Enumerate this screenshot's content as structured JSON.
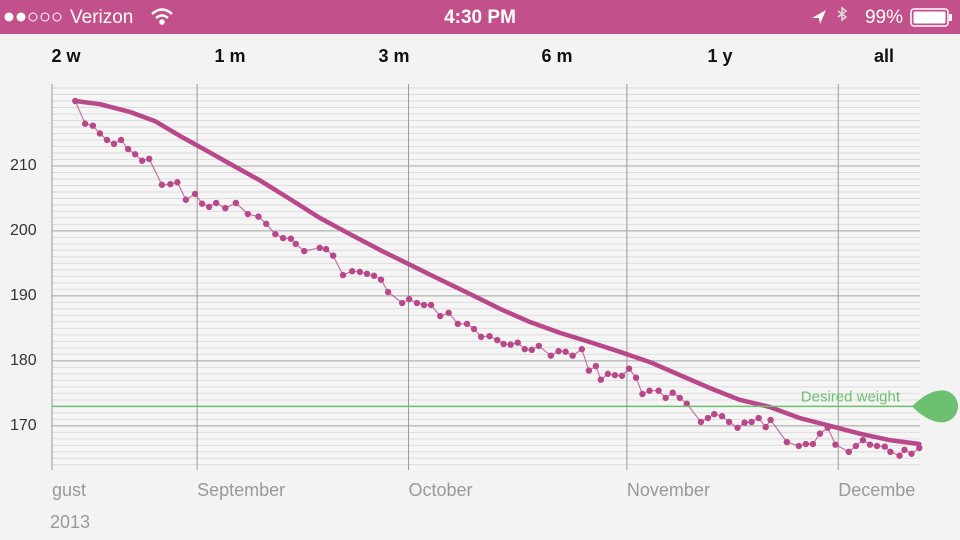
{
  "status_bar": {
    "carrier": "Verizon",
    "time": "4:30 PM",
    "battery": "99%"
  },
  "range_tabs": [
    "2 w",
    "1 m",
    "3 m",
    "6 m",
    "1 y",
    "all"
  ],
  "year_label": "2013",
  "chart_data": {
    "type": "line",
    "xlim": [
      10.4,
      133.6
    ],
    "xticks": [
      {
        "value": 10.4,
        "label": "gust"
      },
      {
        "value": 31,
        "label": "September"
      },
      {
        "value": 61,
        "label": "October"
      },
      {
        "value": 92,
        "label": "November"
      },
      {
        "value": 122,
        "label": "Decembe"
      }
    ],
    "ylim": [
      163.2,
      222
    ],
    "yticks": [
      170,
      180,
      190,
      200,
      210
    ],
    "minor_grid_step": 1,
    "grid": true,
    "series": [
      {
        "color": "#b8488a",
        "markers": true,
        "x": [
          13.7,
          15.1,
          16.2,
          17.2,
          18.2,
          19.2,
          20.2,
          21.2,
          22.2,
          23.2,
          24.2,
          26.0,
          27.2,
          28.2,
          29.4,
          30.7,
          31.7,
          32.7,
          33.7,
          35.0,
          36.5,
          38.2,
          39.7,
          40.8,
          42.1,
          43.2,
          44.3,
          45.0,
          46.2,
          48.4,
          49.3,
          50.3,
          51.7,
          53.0,
          54.1,
          55.1,
          56.1,
          57.1,
          58.1,
          60.1,
          61.1,
          62.2,
          63.2,
          64.2,
          65.5,
          66.7,
          68.0,
          69.3,
          70.3,
          71.3,
          72.5,
          73.6,
          74.5,
          75.5,
          76.5,
          77.5,
          78.5,
          79.5,
          81.2,
          82.3,
          83.3,
          84.3,
          85.6,
          86.6,
          87.6,
          88.3,
          89.3,
          90.3,
          91.3,
          92.3,
          93.3,
          94.2,
          95.2,
          96.5,
          97.5,
          98.5,
          99.5,
          100.5,
          102.5,
          103.5,
          104.4,
          105.5,
          106.5,
          107.7,
          108.7,
          109.7,
          110.7,
          111.7,
          112.4,
          114.7,
          116.4,
          117.4,
          118.4,
          119.4,
          120.5,
          121.6,
          123.5,
          124.5,
          125.5,
          126.5,
          127.5,
          128.6,
          129.4,
          130.7,
          131.4,
          132.4,
          133.5
        ],
        "values": [
          220,
          216.5,
          216.2,
          215,
          214,
          213.4,
          214,
          212.6,
          211.8,
          210.8,
          211.1,
          207.1,
          207.2,
          207.5,
          204.8,
          205.7,
          204.2,
          203.7,
          204.3,
          203.5,
          204.3,
          202.6,
          202.2,
          201.1,
          199.5,
          198.9,
          198.8,
          198,
          196.9,
          197.4,
          197.2,
          196.2,
          193.2,
          193.8,
          193.7,
          193.4,
          193.1,
          192.5,
          190.6,
          188.9,
          189.5,
          188.9,
          188.6,
          188.6,
          186.9,
          187.4,
          185.7,
          185.7,
          184.9,
          183.7,
          183.8,
          183.2,
          182.6,
          182.5,
          182.8,
          181.8,
          181.7,
          182.3,
          180.8,
          181.5,
          181.4,
          180.8,
          181.8,
          178.5,
          179.2,
          177.1,
          178,
          177.8,
          177.7,
          178.8,
          177.4,
          174.9,
          175.4,
          175.4,
          174.3,
          175.1,
          174.3,
          173.4,
          170.6,
          171.2,
          171.8,
          171.5,
          170.6,
          169.7,
          170.5,
          170.6,
          171.2,
          169.8,
          170.9,
          167.5,
          166.9,
          167.2,
          167.2,
          168.8,
          169.7,
          167.1,
          166,
          166.9,
          167.8,
          167.1,
          166.9,
          166.8,
          166,
          165.4,
          166.3,
          165.7,
          166.6
        ]
      },
      {
        "color": "#b8488a",
        "markers": false,
        "x": [
          13.7,
          17.2,
          21.5,
          25.0,
          28.6,
          32.1,
          35.7,
          39.9,
          44.2,
          48.4,
          52.7,
          56.9,
          61.2,
          65.5,
          69.7,
          74.0,
          78.2,
          82.5,
          86.7,
          91.0,
          95.3,
          99.5,
          103.8,
          108.0,
          112.3,
          116.5,
          120.8,
          125.0,
          129.3,
          133.5
        ],
        "values": [
          220,
          219.5,
          218.3,
          216.9,
          214.6,
          212.5,
          210.3,
          207.8,
          204.9,
          202,
          199.5,
          197.1,
          194.8,
          192.5,
          190.3,
          188,
          186,
          184.3,
          182.9,
          181.4,
          179.8,
          177.8,
          175.8,
          174,
          172.9,
          171.2,
          170,
          168.8,
          167.8,
          167.2
        ]
      }
    ],
    "annotations": [
      {
        "label": "Desired weight",
        "value": 173,
        "color": "#6cc070"
      }
    ]
  }
}
